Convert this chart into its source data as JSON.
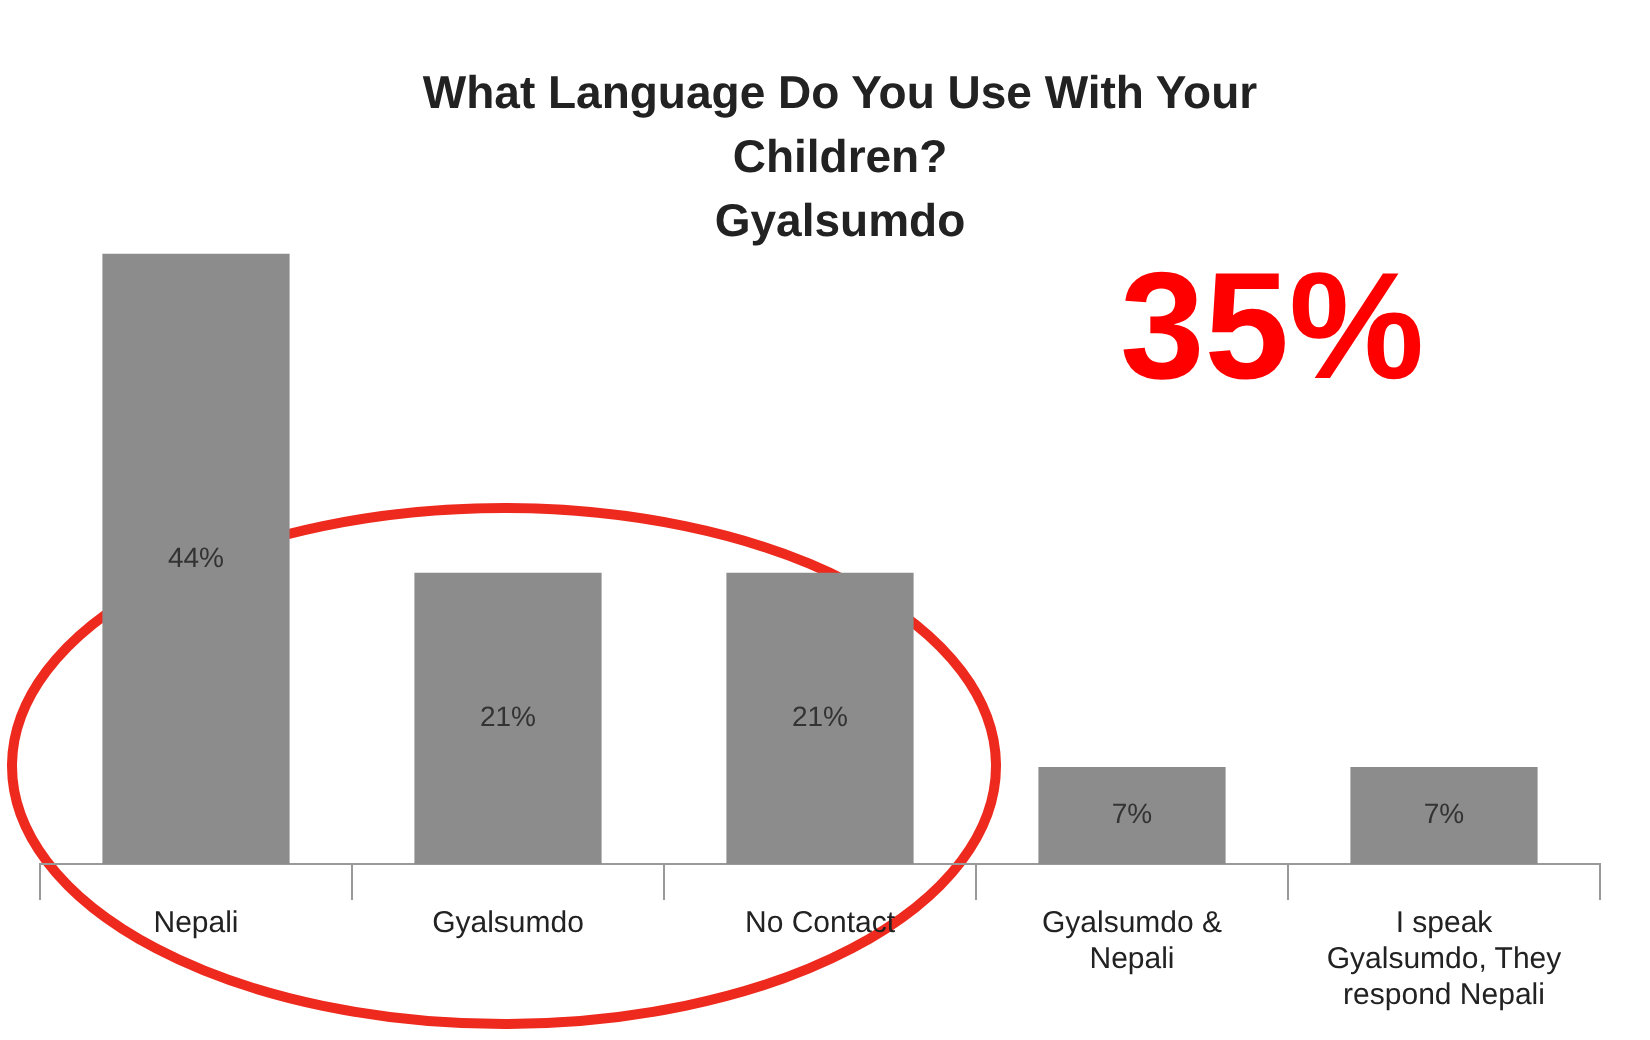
{
  "chart_data": {
    "type": "bar",
    "title": "What Language Do You Use With Your Children?",
    "subtitle": "Gyalsumdo",
    "categories": [
      "Nepali",
      "Gyalsumdo",
      "No Contact",
      "Gyalsumdo & Nepali",
      "I speak Gyalsumdo, They respond Nepali"
    ],
    "values": [
      44,
      21,
      21,
      7,
      7
    ],
    "color": "#8c8c8c",
    "value_labels": [
      "44%",
      "21%",
      "21%",
      "7%",
      "7%"
    ],
    "annotations": [
      "35%"
    ],
    "legend": false,
    "grid": false
  }
}
